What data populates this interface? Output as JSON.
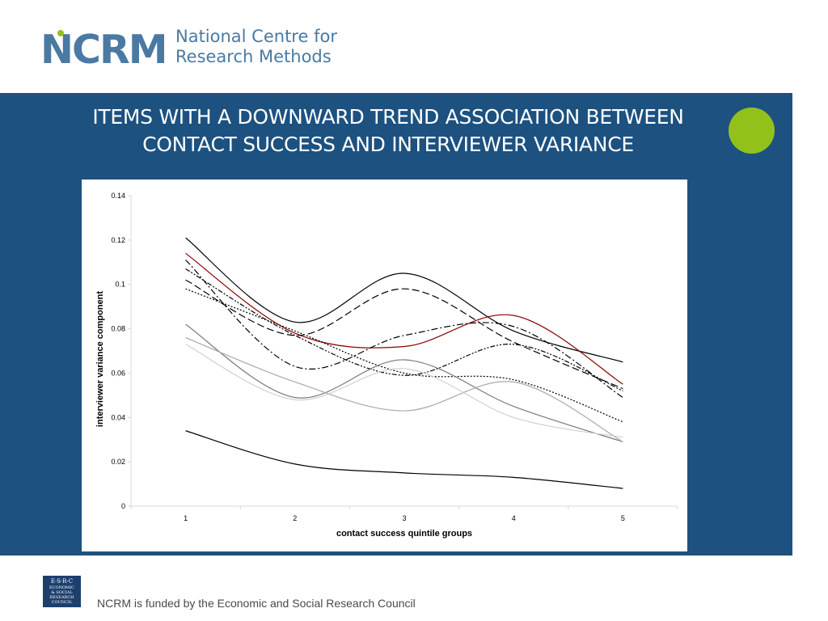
{
  "header": {
    "logo_mark": "NCRM",
    "logo_line1": "National Centre for",
    "logo_line2": "Research Methods"
  },
  "slide": {
    "title_line1": "ITEMS WITH A DOWNWARD TREND ASSOCIATION BETWEEN",
    "title_line2": "CONTACT SUCCESS AND INTERVIEWER VARIANCE"
  },
  "colors": {
    "banner": "#1c5180",
    "accent_dot": "#93c11c",
    "logo_text": "#4a7aa3"
  },
  "footer": {
    "esrc_logo_text": [
      "E·S·R·C",
      "ECONOMIC",
      "& SOCIAL",
      "RESEARCH",
      "COUNCIL"
    ],
    "funding_text": "NCRM is funded by the Economic and Social Research Council"
  },
  "chart_data": {
    "type": "line",
    "title": "",
    "xlabel": "contact success quintile groups",
    "ylabel": "interviewer variance component",
    "categories": [
      "1",
      "2",
      "3",
      "4",
      "5"
    ],
    "ylim": [
      0,
      0.14
    ],
    "yticks": [
      "0",
      "0.02",
      "0.04",
      "0.06",
      "0.08",
      "0.1",
      "0.12",
      "0.14"
    ],
    "grid": false,
    "legend": "none",
    "series": [
      {
        "values": [
          0.121,
          0.083,
          0.105,
          0.079,
          0.065
        ],
        "color": "#000000",
        "dash": ""
      },
      {
        "values": [
          0.114,
          0.078,
          0.072,
          0.086,
          0.055
        ],
        "color": "#8b0000",
        "dash": ""
      },
      {
        "values": [
          0.102,
          0.077,
          0.098,
          0.074,
          0.053
        ],
        "color": "#000000",
        "dash": "9 4"
      },
      {
        "values": [
          0.111,
          0.063,
          0.077,
          0.081,
          0.049
        ],
        "color": "#000000",
        "dash": "8 3 2 3"
      },
      {
        "values": [
          0.107,
          0.077,
          0.059,
          0.073,
          0.052
        ],
        "color": "#000000",
        "dash": "6 2 2 2 2 2"
      },
      {
        "values": [
          0.098,
          0.079,
          0.06,
          0.057,
          0.038
        ],
        "color": "#000000",
        "dash": "2 2"
      },
      {
        "values": [
          0.082,
          0.049,
          0.066,
          0.045,
          0.029
        ],
        "color": "#7a7a7a",
        "dash": ""
      },
      {
        "values": [
          0.076,
          0.056,
          0.043,
          0.056,
          0.029
        ],
        "color": "#a9a9a9",
        "dash": ""
      },
      {
        "values": [
          0.073,
          0.048,
          0.062,
          0.04,
          0.031
        ],
        "color": "#cfcfcf",
        "dash": ""
      },
      {
        "values": [
          0.034,
          0.019,
          0.015,
          0.013,
          0.008
        ],
        "color": "#000000",
        "dash": ""
      }
    ]
  }
}
